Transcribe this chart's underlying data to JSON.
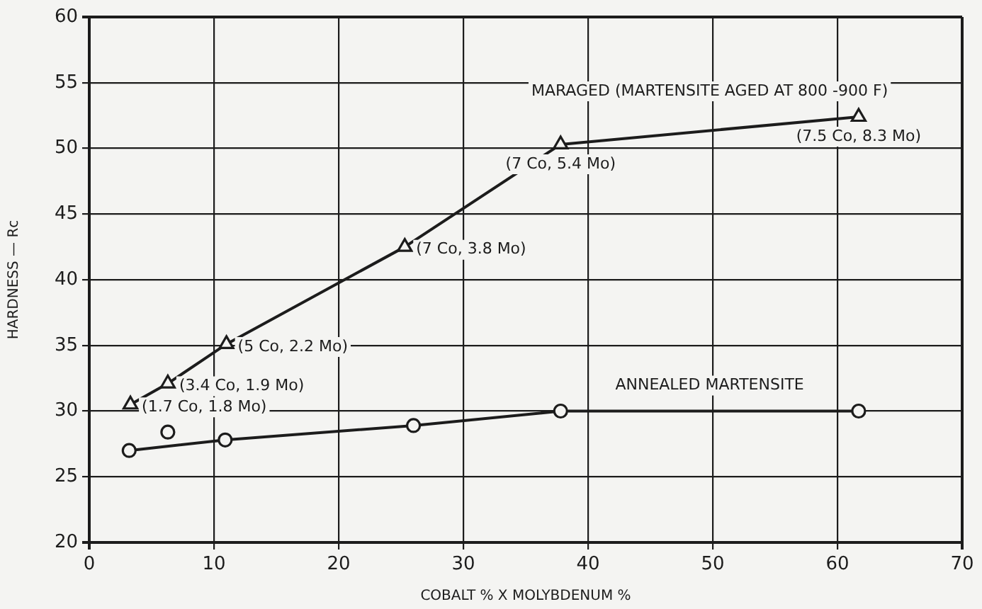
{
  "chart_data": {
    "type": "line",
    "xlabel": "COBALT % X MOLYBDENUM %",
    "ylabel": "HARDNESS — Rc",
    "xlim": [
      0,
      70
    ],
    "xticks": [
      0,
      10,
      20,
      30,
      40,
      50,
      60,
      70
    ],
    "ylim": [
      20,
      60
    ],
    "yticks": [
      20,
      25,
      30,
      35,
      40,
      45,
      50,
      55,
      60
    ],
    "grid": true,
    "legend": false,
    "line_style": "solid",
    "series": [
      {
        "name": "MARAGED (MARTENSITE AGED AT 800 -900 F)",
        "color": "#1c1c1c",
        "marker": "triangle",
        "x": [
          3.3,
          6.3,
          11,
          25.3,
          37.8,
          61.7
        ],
        "values": [
          30.5,
          32.1,
          35.1,
          42.5,
          50.3,
          52.4
        ]
      },
      {
        "name": "ANNEALED MARTENSITE",
        "color": "#1c1c1c",
        "marker": "circle",
        "x": [
          3.2,
          10.9,
          26,
          37.8,
          61.7
        ],
        "values": [
          27,
          27.8,
          28.9,
          30,
          30
        ]
      },
      {
        "type": "scatter",
        "color": "#1c1c1c",
        "marker": "circle",
        "x": [
          6.3
        ],
        "values": [
          28.4
        ]
      }
    ],
    "annotations": [
      {
        "text": "(1.7 Co, 1.8 Mo)",
        "x": 3.3,
        "y": 30.5
      },
      {
        "text": "(3.4 Co, 1.9 Mo)",
        "x": 6.3,
        "y": 32.1
      },
      {
        "text": "(5 Co, 2.2 Mo)",
        "x": 11,
        "y": 35.1
      },
      {
        "text": "(7 Co, 3.8 Mo)",
        "x": 25.3,
        "y": 42.5
      },
      {
        "text": "(7 Co, 5.4 Mo)",
        "x": 37.8,
        "y": 50.3
      },
      {
        "text": "(7.5 Co, 8.3 Mo)",
        "x": 61.7,
        "y": 52.4
      }
    ]
  }
}
